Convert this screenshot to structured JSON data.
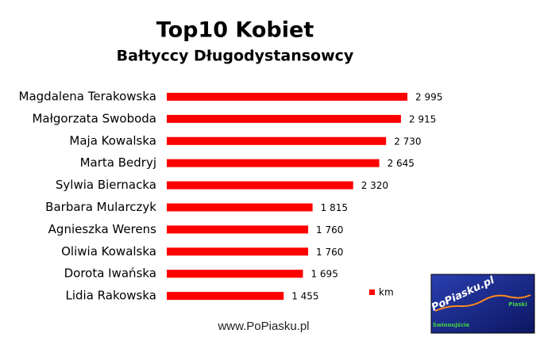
{
  "chart_data": {
    "type": "bar",
    "orientation": "horizontal",
    "title": "Top10 Kobiet",
    "subtitle": "Bałtyccy Długodystansowcy",
    "categories": [
      "Magdalena Terakowska",
      "Małgorzata Swoboda",
      "Maja Kowalska",
      "Marta Bedryj",
      "Sylwia Biernacka",
      "Barbara Mularczyk",
      "Agnieszka Werens",
      "Oliwia Kowalska",
      "Dorota Iwańska",
      "Lidia Rakowska"
    ],
    "series": [
      {
        "name": "km",
        "color": "#ff0000",
        "values": [
          2995,
          2915,
          2730,
          2645,
          2320,
          1815,
          1760,
          1760,
          1695,
          1455
        ],
        "value_labels": [
          "2 995",
          "2 915",
          "2 730",
          "2 645",
          "2 320",
          "1 815",
          "1 760",
          "1 760",
          "1 695",
          "1 455"
        ]
      }
    ]
  },
  "footer": "www.PoPiasku.pl",
  "logo": {
    "title": "PoPiasku.pl",
    "left": "Świnoujście",
    "right": "Piaski"
  }
}
